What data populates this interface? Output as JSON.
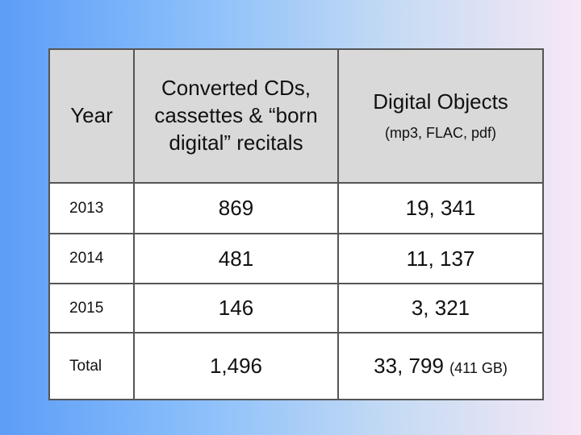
{
  "table": {
    "header": {
      "year": "Year",
      "converted": "Converted CDs, cassettes & “born digital” recitals",
      "digital": "Digital Objects",
      "digital_note": "(mp3, FLAC, pdf)"
    },
    "rows": [
      [
        "2013",
        "869",
        "19, 341"
      ],
      [
        "2014",
        "481",
        "11, 137"
      ],
      [
        "2015",
        "146",
        "3, 321"
      ]
    ],
    "total": {
      "label": "Total",
      "converted": "1,496",
      "digital": "33, 799",
      "digital_note": "(411 GB)"
    }
  }
}
